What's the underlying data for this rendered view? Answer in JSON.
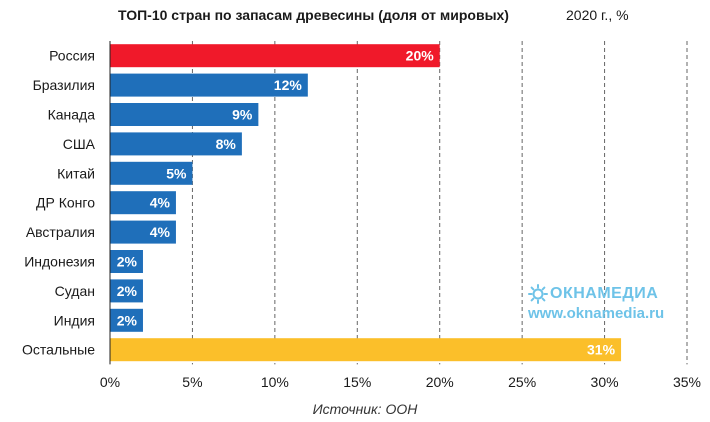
{
  "title": "ТОП-10 стран по запасам древесины (доля от мировых)",
  "subtitle": "2020 г., %",
  "source": "Источник: ООН",
  "watermark": {
    "brand": "ОКНАМЕДИА",
    "url": "www.oknamedia.ru",
    "color": "#6ec3e8"
  },
  "colors": {
    "highlight": "#f0192a",
    "default": "#1f6fba",
    "other": "#fbbf2a"
  },
  "chart_data": {
    "type": "bar",
    "orientation": "horizontal",
    "title": "ТОП-10 стран по запасам древесины (доля от мировых)",
    "subtitle": "2020 г., %",
    "categories": [
      "Россия",
      "Бразилия",
      "Канада",
      "США",
      "Китай",
      "ДР Конго",
      "Австралия",
      "Индонезия",
      "Судан",
      "Индия",
      "Остальные"
    ],
    "values": [
      20,
      12,
      9,
      8,
      5,
      4,
      4,
      2,
      2,
      2,
      31
    ],
    "value_labels": [
      "20%",
      "12%",
      "9%",
      "8%",
      "5%",
      "4%",
      "4%",
      "2%",
      "2%",
      "2%",
      "31%"
    ],
    "bar_colors": [
      "#f0192a",
      "#1f6fba",
      "#1f6fba",
      "#1f6fba",
      "#1f6fba",
      "#1f6fba",
      "#1f6fba",
      "#1f6fba",
      "#1f6fba",
      "#1f6fba",
      "#fbbf2a"
    ],
    "xlim": [
      0,
      35
    ],
    "xticks": [
      0,
      5,
      10,
      15,
      20,
      25,
      30,
      35
    ],
    "xtick_labels": [
      "0%",
      "5%",
      "10%",
      "15%",
      "20%",
      "25%",
      "30%",
      "35%"
    ],
    "grid": "vertical dashed",
    "legend": "none"
  }
}
